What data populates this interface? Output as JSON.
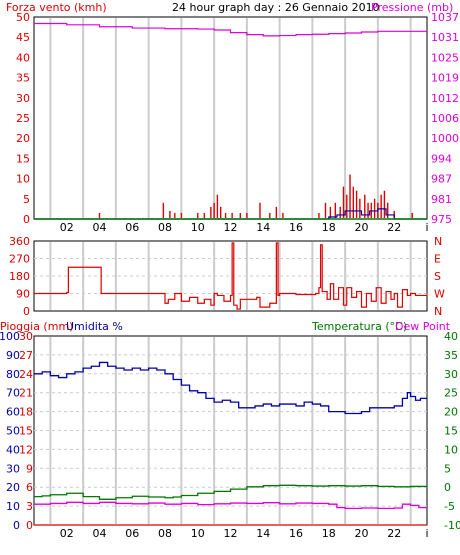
{
  "colors": {
    "red": "#dd0000",
    "magenta": "#dd00dd",
    "green": "#007700",
    "blue": "#0000aa",
    "grid": "#cccccc",
    "axis": "#000000"
  },
  "top_header": {
    "left_label": "Forza vento (kmh)",
    "title": "24 hour graph day : 26 Gennaio 2010",
    "right_label": "Pressione (mb)"
  },
  "bottom_header": {
    "left_label_1": "Pioggia (mm)",
    "left_label_2": "Umidita %",
    "right_label_1": "Temperatura (°C)",
    "right_label_2": "Dew Point"
  },
  "x_ticks": [
    "02",
    "04",
    "06",
    "08",
    "10",
    "12",
    "14",
    "16",
    "18",
    "20",
    "22",
    "i"
  ],
  "chart_data": [
    {
      "type": "line",
      "name": "wind-pressure",
      "x_range": [
        0,
        24
      ],
      "y_left": {
        "label": "Forza vento (kmh)",
        "ticks": [
          0,
          5,
          10,
          15,
          20,
          25,
          30,
          35,
          40,
          45,
          50
        ],
        "range": [
          0,
          50
        ]
      },
      "y_right": {
        "label": "Pressione (mb)",
        "ticks": [
          "975",
          "981",
          "987",
          "994",
          "1000",
          "1006",
          "1012",
          "1019",
          "1025",
          "1031",
          "1037"
        ],
        "range": [
          975,
          1037
        ]
      },
      "series": [
        {
          "role": "pressure",
          "color": "magenta",
          "axis": "right",
          "points": [
            [
              0,
              1035
            ],
            [
              2,
              1034.6
            ],
            [
              4,
              1034.0
            ],
            [
              6,
              1033.6
            ],
            [
              8,
              1033.4
            ],
            [
              10,
              1033.3
            ],
            [
              11,
              1033.0
            ],
            [
              12,
              1032.2
            ],
            [
              13,
              1031.6
            ],
            [
              14,
              1031.2
            ],
            [
              15,
              1031.3
            ],
            [
              16,
              1031.6
            ],
            [
              17,
              1031.7
            ],
            [
              18,
              1031.9
            ],
            [
              19,
              1032.1
            ],
            [
              20,
              1032.4
            ],
            [
              21,
              1032.6
            ],
            [
              22,
              1032.6
            ],
            [
              23,
              1032.6
            ],
            [
              24,
              1032.6
            ]
          ]
        },
        {
          "role": "wind-bars",
          "color": "red",
          "axis": "left",
          "points": [
            [
              4,
              1.5
            ],
            [
              7.9,
              4
            ],
            [
              8.3,
              2
            ],
            [
              8.6,
              1.5
            ],
            [
              9.0,
              1.5
            ],
            [
              10.0,
              1.5
            ],
            [
              10.4,
              1.5
            ],
            [
              10.8,
              3
            ],
            [
              11.0,
              4
            ],
            [
              11.2,
              6
            ],
            [
              11.4,
              3
            ],
            [
              11.7,
              1.5
            ],
            [
              12.1,
              1.5
            ],
            [
              12.6,
              1.5
            ],
            [
              13.0,
              1.5
            ],
            [
              13.8,
              4
            ],
            [
              14.4,
              1.5
            ],
            [
              14.8,
              3
            ],
            [
              15.2,
              1.5
            ],
            [
              17.4,
              1.5
            ],
            [
              17.8,
              4
            ],
            [
              18.1,
              3
            ],
            [
              18.4,
              4
            ],
            [
              18.7,
              3
            ],
            [
              18.9,
              8
            ],
            [
              19.1,
              6
            ],
            [
              19.3,
              11
            ],
            [
              19.5,
              8
            ],
            [
              19.7,
              7
            ],
            [
              19.9,
              5
            ],
            [
              20.2,
              6
            ],
            [
              20.4,
              4
            ],
            [
              20.6,
              4
            ],
            [
              20.8,
              5
            ],
            [
              21.0,
              4
            ],
            [
              21.2,
              6
            ],
            [
              21.4,
              7
            ],
            [
              21.6,
              4
            ],
            [
              22.0,
              2
            ],
            [
              23.1,
              1.5
            ]
          ]
        },
        {
          "role": "wind-gust",
          "color": "blue",
          "axis": "left",
          "points": [
            [
              0,
              0
            ],
            [
              17.5,
              0
            ],
            [
              18.0,
              0.5
            ],
            [
              18.5,
              1
            ],
            [
              19.0,
              2
            ],
            [
              19.5,
              2
            ],
            [
              20.0,
              1
            ],
            [
              20.5,
              2
            ],
            [
              21.0,
              2.5
            ],
            [
              21.5,
              1
            ],
            [
              22.0,
              0
            ],
            [
              24,
              0
            ]
          ]
        },
        {
          "role": "wind-avg",
          "color": "green",
          "axis": "left",
          "points": [
            [
              0,
              0
            ],
            [
              24,
              0
            ]
          ]
        }
      ]
    },
    {
      "type": "line",
      "name": "wind-direction",
      "x_range": [
        0,
        24
      ],
      "y_left": {
        "ticks": [
          0,
          90,
          180,
          270,
          360
        ],
        "range": [
          0,
          360
        ]
      },
      "y_right": {
        "ticks": [
          "N",
          "W",
          "S",
          "E",
          "N"
        ]
      },
      "series": [
        {
          "role": "direction",
          "color": "red",
          "points": [
            [
              0,
              90
            ],
            [
              1.5,
              90
            ],
            [
              2.0,
              95
            ],
            [
              2.1,
              225
            ],
            [
              4.0,
              225
            ],
            [
              4.1,
              90
            ],
            [
              7.8,
              90
            ],
            [
              8.0,
              40
            ],
            [
              8.2,
              60
            ],
            [
              8.6,
              90
            ],
            [
              9.0,
              50
            ],
            [
              9.5,
              70
            ],
            [
              10.0,
              40
            ],
            [
              10.4,
              60
            ],
            [
              10.8,
              30
            ],
            [
              11.0,
              90
            ],
            [
              11.2,
              80
            ],
            [
              11.6,
              50
            ],
            [
              12.0,
              80
            ],
            [
              12.1,
              350
            ],
            [
              12.2,
              30
            ],
            [
              12.4,
              10
            ],
            [
              12.6,
              60
            ],
            [
              13.0,
              60
            ],
            [
              13.6,
              70
            ],
            [
              13.8,
              20
            ],
            [
              14.4,
              40
            ],
            [
              14.8,
              350
            ],
            [
              14.9,
              80
            ],
            [
              15.0,
              90
            ],
            [
              16.0,
              85
            ],
            [
              17.2,
              90
            ],
            [
              17.4,
              120
            ],
            [
              17.5,
              340
            ],
            [
              17.6,
              100
            ],
            [
              17.9,
              60
            ],
            [
              18.1,
              140
            ],
            [
              18.3,
              60
            ],
            [
              18.6,
              120
            ],
            [
              18.9,
              30
            ],
            [
              19.1,
              120
            ],
            [
              19.4,
              70
            ],
            [
              19.7,
              100
            ],
            [
              20.0,
              20
            ],
            [
              20.3,
              90
            ],
            [
              20.6,
              50
            ],
            [
              20.9,
              120
            ],
            [
              21.2,
              40
            ],
            [
              21.5,
              100
            ],
            [
              21.8,
              60
            ],
            [
              22.0,
              90
            ],
            [
              22.2,
              20
            ],
            [
              22.5,
              110
            ],
            [
              22.8,
              80
            ],
            [
              23.0,
              90
            ],
            [
              23.3,
              80
            ],
            [
              24,
              90
            ]
          ]
        }
      ]
    },
    {
      "type": "line",
      "name": "rain-humidity-temperature",
      "x_range": [
        0,
        24
      ],
      "y_left_outer": {
        "label": "Pioggia (mm)",
        "ticks": [
          0,
          10,
          20,
          30,
          40,
          50,
          60,
          70,
          80,
          90,
          100
        ],
        "range": [
          0,
          100
        ]
      },
      "y_left_inner": {
        "label": "Umidita %",
        "ticks": [
          0,
          3,
          6,
          9,
          12,
          15,
          18,
          21,
          24,
          27,
          30
        ],
        "range": [
          0,
          30
        ]
      },
      "y_right": {
        "label": "Temperatura (°C)",
        "ticks": [
          "-10",
          "-5",
          "0",
          "5",
          "10",
          "15",
          "20",
          "25",
          "30",
          "35",
          "40"
        ],
        "range": [
          -10,
          40
        ]
      },
      "series": [
        {
          "role": "humidity",
          "color": "blue",
          "axis": "left_outer",
          "points": [
            [
              0,
              80
            ],
            [
              0.5,
              81
            ],
            [
              1.0,
              79
            ],
            [
              1.5,
              78
            ],
            [
              2.0,
              80
            ],
            [
              2.5,
              81
            ],
            [
              3.0,
              83
            ],
            [
              3.5,
              84
            ],
            [
              4.0,
              86
            ],
            [
              4.5,
              84
            ],
            [
              5.0,
              83
            ],
            [
              5.5,
              82
            ],
            [
              6.0,
              83
            ],
            [
              6.5,
              82
            ],
            [
              7.0,
              83
            ],
            [
              7.5,
              82
            ],
            [
              8.0,
              80
            ],
            [
              8.5,
              77
            ],
            [
              9.0,
              74
            ],
            [
              9.5,
              71
            ],
            [
              10.0,
              70
            ],
            [
              10.5,
              67
            ],
            [
              11.0,
              65
            ],
            [
              11.5,
              66
            ],
            [
              12.0,
              65
            ],
            [
              12.5,
              62
            ],
            [
              13.0,
              62
            ],
            [
              13.5,
              63
            ],
            [
              14.0,
              64
            ],
            [
              14.5,
              63
            ],
            [
              15.0,
              64
            ],
            [
              15.5,
              64
            ],
            [
              16.0,
              63
            ],
            [
              16.5,
              65
            ],
            [
              17.0,
              64
            ],
            [
              17.5,
              63
            ],
            [
              18.0,
              60
            ],
            [
              18.5,
              60
            ],
            [
              19.0,
              59
            ],
            [
              19.5,
              59
            ],
            [
              20.0,
              60
            ],
            [
              20.5,
              62
            ],
            [
              21.0,
              62
            ],
            [
              21.5,
              62
            ],
            [
              22.0,
              63
            ],
            [
              22.5,
              67
            ],
            [
              22.8,
              70
            ],
            [
              23.0,
              68
            ],
            [
              23.3,
              66
            ],
            [
              23.6,
              67
            ],
            [
              24,
              67
            ]
          ]
        },
        {
          "role": "temperature",
          "color": "green",
          "axis": "right",
          "points": [
            [
              0,
              -2.5
            ],
            [
              0.5,
              -2.3
            ],
            [
              1,
              -2.0
            ],
            [
              2,
              -1.6
            ],
            [
              3,
              -2.5
            ],
            [
              4,
              -3.2
            ],
            [
              5,
              -2.8
            ],
            [
              6,
              -2.4
            ],
            [
              7,
              -2.6
            ],
            [
              8,
              -2.8
            ],
            [
              8.5,
              -2.6
            ],
            [
              9,
              -2.2
            ],
            [
              10,
              -1.6
            ],
            [
              11,
              -1.1
            ],
            [
              12,
              -0.5
            ],
            [
              13,
              0.1
            ],
            [
              14,
              0.4
            ],
            [
              15,
              0.5
            ],
            [
              16,
              0.4
            ],
            [
              17,
              0.3
            ],
            [
              18,
              0.4
            ],
            [
              19,
              0.3
            ],
            [
              20,
              0.4
            ],
            [
              21,
              0.2
            ],
            [
              22,
              0.1
            ],
            [
              23,
              0.2
            ],
            [
              24,
              -0.1
            ]
          ]
        },
        {
          "role": "dew-point",
          "color": "magenta",
          "axis": "right",
          "points": [
            [
              0,
              -4.5
            ],
            [
              1,
              -4.3
            ],
            [
              2,
              -4.0
            ],
            [
              3,
              -4.3
            ],
            [
              4,
              -4.0
            ],
            [
              5,
              -4.3
            ],
            [
              6,
              -4.4
            ],
            [
              7,
              -4.2
            ],
            [
              8,
              -4.5
            ],
            [
              9,
              -4.3
            ],
            [
              10,
              -4.6
            ],
            [
              11,
              -4.4
            ],
            [
              12,
              -4.2
            ],
            [
              13,
              -4.3
            ],
            [
              14,
              -4.1
            ],
            [
              15,
              -4.4
            ],
            [
              16,
              -4.2
            ],
            [
              17,
              -4.3
            ],
            [
              18,
              -4.5
            ],
            [
              18.5,
              -5.4
            ],
            [
              19,
              -5.6
            ],
            [
              20,
              -5.5
            ],
            [
              21,
              -5.6
            ],
            [
              22,
              -5.5
            ],
            [
              22.5,
              -4.5
            ],
            [
              23,
              -4.8
            ],
            [
              23.5,
              -5.4
            ],
            [
              24,
              -5.4
            ]
          ]
        },
        {
          "role": "rain",
          "color": "red",
          "axis": "left_outer",
          "points": [
            [
              0,
              0
            ],
            [
              24,
              0
            ]
          ]
        }
      ]
    }
  ]
}
